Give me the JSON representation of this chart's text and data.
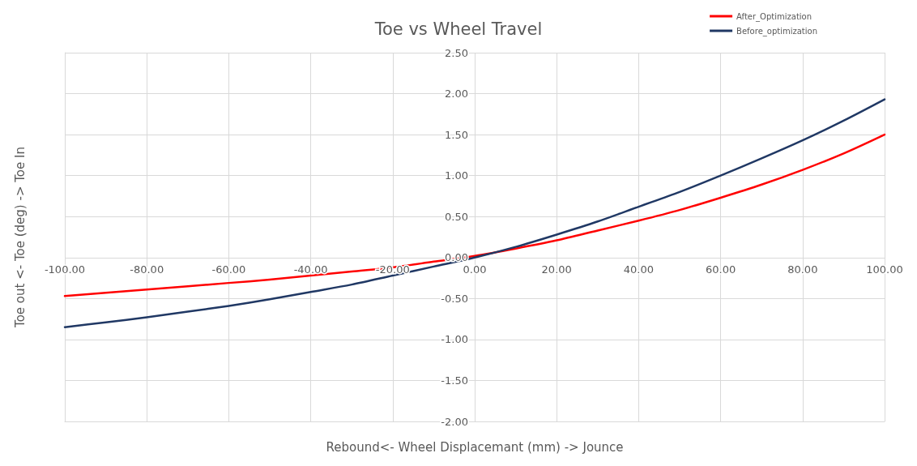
{
  "chart_data": {
    "type": "line",
    "title": "Toe vs Wheel Travel",
    "xlabel": "Rebound<- Wheel Displacemant (mm) -> Jounce",
    "ylabel": "Toe out <- Toe (deg) -> Toe In",
    "x": [
      -100,
      -90,
      -80,
      -70,
      -60,
      -50,
      -40,
      -30,
      -20,
      -10,
      0,
      10,
      20,
      30,
      40,
      50,
      60,
      70,
      80,
      90,
      100
    ],
    "series": [
      {
        "name": "After_Optimization",
        "color": "#ff0000",
        "values": [
          -0.47,
          -0.43,
          -0.39,
          -0.35,
          -0.31,
          -0.27,
          -0.22,
          -0.17,
          -0.12,
          -0.05,
          0.02,
          0.11,
          0.21,
          0.33,
          0.45,
          0.58,
          0.73,
          0.89,
          1.07,
          1.27,
          1.5
        ]
      },
      {
        "name": "Before_optimization",
        "color": "#203864",
        "values": [
          -0.85,
          -0.79,
          -0.73,
          -0.66,
          -0.59,
          -0.51,
          -0.42,
          -0.33,
          -0.22,
          -0.11,
          0.0,
          0.13,
          0.28,
          0.44,
          0.62,
          0.8,
          1.0,
          1.21,
          1.43,
          1.67,
          1.93
        ]
      }
    ],
    "xlim": [
      -100,
      100
    ],
    "xticks": [
      {
        "value": -100,
        "label": "-100.00"
      },
      {
        "value": -80,
        "label": "-80.00"
      },
      {
        "value": -60,
        "label": "-60.00"
      },
      {
        "value": -40,
        "label": "-40.00"
      },
      {
        "value": -20,
        "label": "-20.00"
      },
      {
        "value": 0,
        "label": "0.00"
      },
      {
        "value": 20,
        "label": "20.00"
      },
      {
        "value": 40,
        "label": "40.00"
      },
      {
        "value": 60,
        "label": "60.00"
      },
      {
        "value": 80,
        "label": "80.00"
      },
      {
        "value": 100,
        "label": "100.00"
      }
    ],
    "ylim": [
      -2,
      2.5
    ],
    "yticks": [
      {
        "value": -2,
        "label": "-2.00"
      },
      {
        "value": -1.5,
        "label": "-1.50"
      },
      {
        "value": -1,
        "label": "-1.00"
      },
      {
        "value": -0.5,
        "label": "-0.50"
      },
      {
        "value": 0,
        "label": "0.00"
      },
      {
        "value": 0.5,
        "label": "0.50"
      },
      {
        "value": 1,
        "label": "1.00"
      },
      {
        "value": 1.5,
        "label": "1.50"
      },
      {
        "value": 2,
        "label": "2.00"
      },
      {
        "value": 2.5,
        "label": "2.50"
      }
    ],
    "grid": true,
    "legend": "top right",
    "marker": "none",
    "line_style": "solid"
  }
}
